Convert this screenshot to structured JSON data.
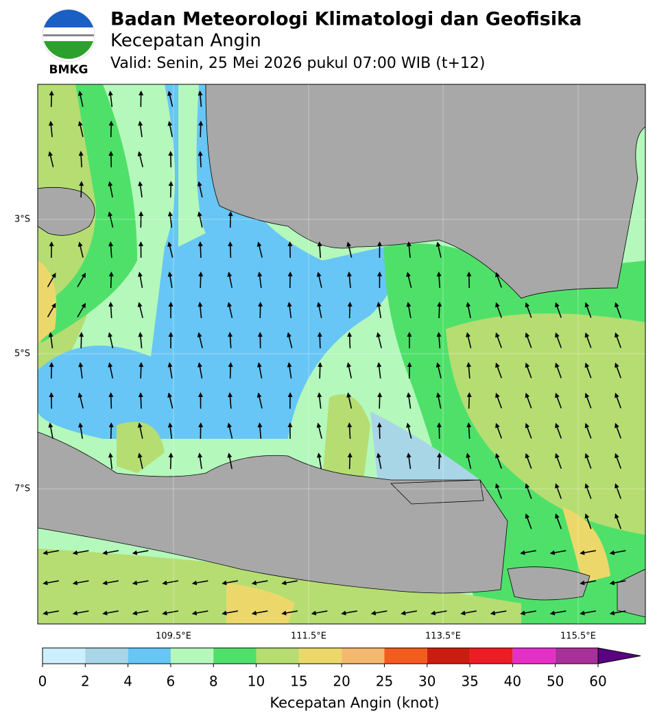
{
  "header": {
    "logo_text": "BMKG",
    "title": "Badan Meteorologi Klimatologi dan Geofisika",
    "subtitle": "Kecepatan Angin",
    "valid": "Valid: Senin, 25 Mei 2026 pukul 07:00 WIB (t+12)"
  },
  "map": {
    "lat_labels": [
      "3°S",
      "5°S",
      "7°S"
    ],
    "lon_labels": [
      "109.5°E",
      "111.5°E",
      "113.5°E",
      "115.5°E"
    ]
  },
  "colorbar": {
    "ticks": [
      0,
      2,
      4,
      6,
      8,
      10,
      15,
      20,
      25,
      30,
      35,
      40,
      50,
      60
    ],
    "colors": [
      "#cdeefd",
      "#a8d6e6",
      "#67c6f5",
      "#b4f8bb",
      "#4fe06a",
      "#b5dd72",
      "#ecd86a",
      "#f5b870",
      "#f45b1e",
      "#cc1c10",
      "#ee1c24",
      "#e530c8",
      "#a8309a",
      "#5a0080"
    ],
    "label": "Kecepatan Angin (knot)"
  }
}
